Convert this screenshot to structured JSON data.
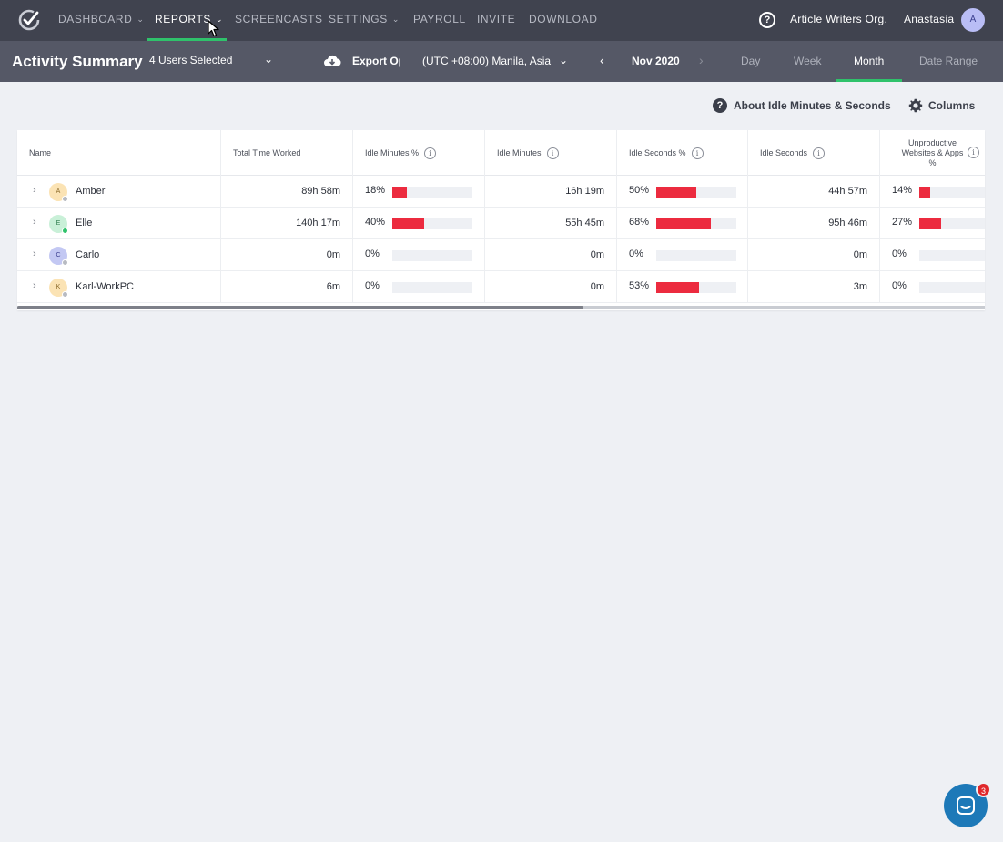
{
  "nav": {
    "items": [
      {
        "label": "DASHBOARD",
        "has_menu": true
      },
      {
        "label": "REPORTS",
        "has_menu": true,
        "active": true
      },
      {
        "label": "SCREENCASTS",
        "has_menu": false
      },
      {
        "label": "SETTINGS",
        "has_menu": true
      },
      {
        "label": "PAYROLL",
        "has_menu": false
      },
      {
        "label": "INVITE",
        "has_menu": false
      },
      {
        "label": "DOWNLOAD",
        "has_menu": false
      }
    ],
    "org_name": "Article Writers Org.",
    "user_name": "Anastasia",
    "user_initial": "A"
  },
  "subbar": {
    "title": "Activity Summary",
    "users_selected": "4 Users Selected",
    "export_label": "Export Options",
    "timezone": "(UTC +08:00) Manila, Asia",
    "period": "Nov 2020",
    "ranges": [
      {
        "label": "Day"
      },
      {
        "label": "Week"
      },
      {
        "label": "Month",
        "active": true
      },
      {
        "label": "Date Range"
      }
    ]
  },
  "actions": {
    "about_label": "About Idle Minutes & Seconds",
    "columns_label": "Columns"
  },
  "table": {
    "headers": {
      "name": "Name",
      "total": "Total Time Worked",
      "idle_min_pct": "Idle Minutes %",
      "idle_min": "Idle Minutes",
      "idle_sec_pct": "Idle Seconds %",
      "idle_sec": "Idle Seconds",
      "unprod_line1": "Unproductive",
      "unprod_line2": "Websites & Apps",
      "unprod_line3": "%"
    },
    "rows": [
      {
        "initial": "A",
        "name": "Amber",
        "total": "89h 58m",
        "idle_min_pct": "18%",
        "idle_min_frac": 0.18,
        "idle_min": "16h 19m",
        "idle_sec_pct": "50%",
        "idle_sec_frac": 0.5,
        "idle_sec": "44h 57m",
        "unprod_pct": "14%",
        "unprod_frac": 0.14,
        "avatar_bg": "#fbe3b4",
        "avatar_fg": "#8a6a2a",
        "status": "#b8bbc2"
      },
      {
        "initial": "E",
        "name": "Elle",
        "total": "140h 17m",
        "idle_min_pct": "40%",
        "idle_min_frac": 0.4,
        "idle_min": "55h 45m",
        "idle_sec_pct": "68%",
        "idle_sec_frac": 0.68,
        "idle_sec": "95h 46m",
        "unprod_pct": "27%",
        "unprod_frac": 0.27,
        "avatar_bg": "#c9f0d8",
        "avatar_fg": "#2a7a4a",
        "status": "#2fc26b"
      },
      {
        "initial": "C",
        "name": "Carlo",
        "total": "0m",
        "idle_min_pct": "0%",
        "idle_min_frac": 0,
        "idle_min": "0m",
        "idle_sec_pct": "0%",
        "idle_sec_frac": 0,
        "idle_sec": "0m",
        "unprod_pct": "0%",
        "unprod_frac": 0,
        "avatar_bg": "#c3c8f3",
        "avatar_fg": "#3b3f8f",
        "status": "#b8bbc2"
      },
      {
        "initial": "K",
        "name": "Karl-WorkPC",
        "total": "6m",
        "idle_min_pct": "0%",
        "idle_min_frac": 0,
        "idle_min": "0m",
        "idle_sec_pct": "53%",
        "idle_sec_frac": 0.53,
        "idle_sec": "3m",
        "unprod_pct": "0%",
        "unprod_frac": 0,
        "avatar_bg": "#fbe3b4",
        "avatar_fg": "#8a6a2a",
        "status": "#b8bbc2"
      }
    ]
  },
  "chat": {
    "badge": "3"
  },
  "colors": {
    "accent": "#2fc26b",
    "bar": "#ec2b3f",
    "nav_bg": "#40434f",
    "subbar_bg": "#555866"
  }
}
